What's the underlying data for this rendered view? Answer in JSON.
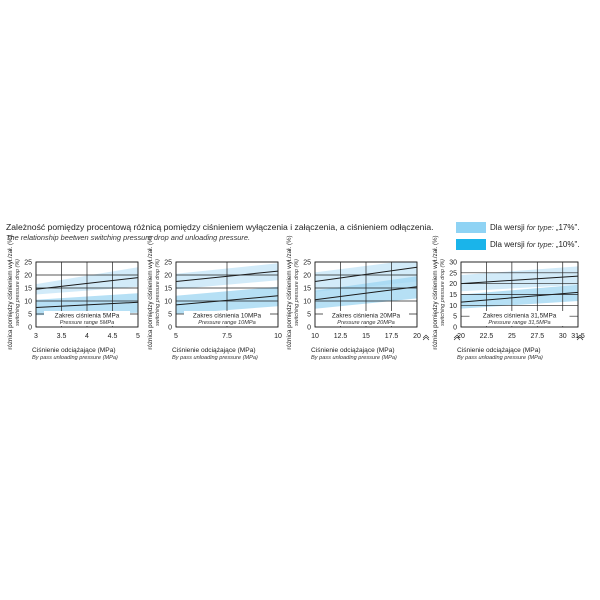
{
  "header": {
    "title_pl": "Zależność pomiędzy procentową różnicą pomiędzy ciśnieniem wyłączenia i załączenia, a ciśnieniem odłączenia.",
    "title_en": "The relationship beetwen switching pressure drop and unloading pressure."
  },
  "legend": {
    "items": [
      {
        "label": "Dla wersji",
        "italic": "for type:",
        "value": "„17%\".",
        "color": "#8fd3f4"
      },
      {
        "label": "Dla wersji",
        "italic": "for type:",
        "value": "„10%\".",
        "color": "#1ab4ea"
      }
    ]
  },
  "colors": {
    "band_light": "#cde9f8",
    "band_dark": "#9ed5f1",
    "line": "#1a1a1a",
    "grid": "#222222"
  },
  "common": {
    "ylabel_pl": "różnica pomiędzy ciśnieniem wył./zał. (%)",
    "ylabel_en": "switching pressure drop (%)",
    "xlabel_pl": "Ciśnienie odciążające (MPa)",
    "xlabel_en": "By pass unloading pressure (MPa)"
  },
  "chart_data": [
    {
      "type": "line",
      "range_pl": "Zakres ciśnienia 5MPa",
      "range_en": "Pressure range 5MPa",
      "x_ticks": [
        "3",
        "3.5",
        "4",
        "4.5",
        "5"
      ],
      "y_ticks": [
        "0",
        "5",
        "10",
        "15",
        "20",
        "25"
      ],
      "xlim": [
        3,
        5
      ],
      "ylim": [
        0,
        25
      ],
      "axis_breaks": false,
      "series": [
        {
          "x": [
            3,
            5
          ],
          "y": [
            14.5,
            19
          ],
          "band_low": [
            12.5,
            15.5
          ],
          "band_high": [
            16.5,
            23
          ]
        },
        {
          "x": [
            3,
            5
          ],
          "y": [
            7.5,
            9.5
          ],
          "band_low": [
            4.5,
            5.5
          ],
          "band_high": [
            10.5,
            13
          ]
        }
      ]
    },
    {
      "type": "line",
      "range_pl": "Zakres ciśnienia 10MPa",
      "range_en": "Pressure range 10MPa",
      "x_ticks": [
        "5",
        "7.5",
        "10"
      ],
      "y_ticks": [
        "0",
        "5",
        "10",
        "15",
        "20",
        "25"
      ],
      "xlim": [
        5,
        10
      ],
      "ylim": [
        0,
        25
      ],
      "axis_breaks": false,
      "series": [
        {
          "x": [
            5,
            10
          ],
          "y": [
            17.5,
            21.5
          ],
          "band_low": [
            14.5,
            18
          ],
          "band_high": [
            20.5,
            24.5
          ]
        },
        {
          "x": [
            5,
            10
          ],
          "y": [
            8.5,
            12
          ],
          "band_low": [
            5,
            8
          ],
          "band_high": [
            12,
            15.5
          ]
        }
      ]
    },
    {
      "type": "line",
      "range_pl": "Zakres ciśnienia 20MPa",
      "range_en": "Pressure range 20MPa",
      "x_ticks": [
        "10",
        "12.5",
        "15",
        "17.5",
        "20"
      ],
      "y_ticks": [
        "0",
        "5",
        "10",
        "15",
        "20",
        "25"
      ],
      "xlim": [
        10,
        20
      ],
      "ylim": [
        0,
        25
      ],
      "axis_breaks": true,
      "series": [
        {
          "x": [
            10,
            20
          ],
          "y": [
            17.5,
            23
          ],
          "band_low": [
            13.5,
            17.5
          ],
          "band_high": [
            21,
            26
          ]
        },
        {
          "x": [
            10,
            20
          ],
          "y": [
            10.5,
            15.5
          ],
          "band_low": [
            7,
            11
          ],
          "band_high": [
            14,
            19.5
          ]
        }
      ]
    },
    {
      "type": "line",
      "range_pl": "Zakres ciśnienia 31,5MPa",
      "range_en": "Pressure range 31,5MPa",
      "x_ticks": [
        "20",
        "22.5",
        "25",
        "27.5",
        "30",
        "31.5"
      ],
      "y_ticks": [
        "0",
        "5",
        "10",
        "15",
        "20",
        "25",
        "30"
      ],
      "xlim": [
        20,
        31.5
      ],
      "ylim": [
        0,
        30
      ],
      "axis_breaks": true,
      "series": [
        {
          "x": [
            20,
            31.5
          ],
          "y": [
            20,
            23.5
          ],
          "band_low": [
            16.5,
            19.5
          ],
          "band_high": [
            24,
            28
          ]
        },
        {
          "x": [
            20,
            31.5
          ],
          "y": [
            11.5,
            16
          ],
          "band_low": [
            8.5,
            12
          ],
          "band_high": [
            15,
            19.5
          ]
        }
      ]
    }
  ]
}
